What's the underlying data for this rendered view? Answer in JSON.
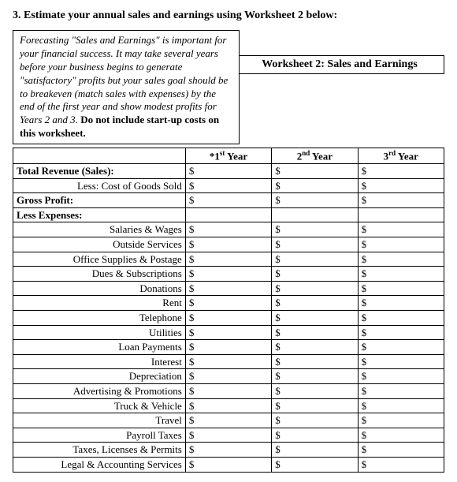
{
  "heading": "3. Estimate your annual sales and earnings using Worksheet 2 below:",
  "callout": {
    "italic_part": "Forecasting \"Sales and Earnings\" is important for your financial success.  It may take several years before your business begins to generate \"satisfactory\" profits but your sales goal should be to breakeven (match sales with expenses) by the end of the first year and show modest profits for Years 2 and 3.",
    "bold_part": " Do not include start-up costs on this worksheet."
  },
  "worksheet_title": "Worksheet 2:  Sales and Earnings",
  "columns": {
    "label": "",
    "y1_prefix": "*1",
    "y1_sup": "st",
    "y1_suffix": " Year",
    "y2_prefix": "2",
    "y2_sup": "nd",
    "y2_suffix": " Year",
    "y3_prefix": "3",
    "y3_sup": "rd",
    "y3_suffix": " Year"
  },
  "currency": "$",
  "rows": [
    {
      "label": "Total Revenue (Sales):",
      "bold": true,
      "align": "left",
      "money": true
    },
    {
      "label": "Less: Cost of Goods Sold",
      "bold": false,
      "align": "right",
      "money": true
    },
    {
      "label": "Gross Profit:",
      "bold": true,
      "align": "left",
      "money": true
    },
    {
      "label": "Less Expenses:",
      "bold": true,
      "align": "left",
      "money": false
    },
    {
      "label": "Salaries & Wages",
      "bold": false,
      "align": "right",
      "money": true
    },
    {
      "label": "Outside Services",
      "bold": false,
      "align": "right",
      "money": true
    },
    {
      "label": "Office Supplies & Postage",
      "bold": false,
      "align": "right",
      "money": true
    },
    {
      "label": "Dues & Subscriptions",
      "bold": false,
      "align": "right",
      "money": true
    },
    {
      "label": "Donations",
      "bold": false,
      "align": "right",
      "money": true
    },
    {
      "label": "Rent",
      "bold": false,
      "align": "right",
      "money": true
    },
    {
      "label": "Telephone",
      "bold": false,
      "align": "right",
      "money": true
    },
    {
      "label": "Utilities",
      "bold": false,
      "align": "right",
      "money": true
    },
    {
      "label": "Loan Payments",
      "bold": false,
      "align": "right",
      "money": true
    },
    {
      "label": "Interest",
      "bold": false,
      "align": "right",
      "money": true
    },
    {
      "label": "Depreciation",
      "bold": false,
      "align": "right",
      "money": true
    },
    {
      "label": "Advertising & Promotions",
      "bold": false,
      "align": "right",
      "money": true
    },
    {
      "label": "Truck & Vehicle",
      "bold": false,
      "align": "right",
      "money": true
    },
    {
      "label": "Travel",
      "bold": false,
      "align": "right",
      "money": true
    },
    {
      "label": "Payroll Taxes",
      "bold": false,
      "align": "right",
      "money": true
    },
    {
      "label": "Taxes, Licenses & Permits",
      "bold": false,
      "align": "right",
      "money": true
    },
    {
      "label": "Legal & Accounting Services",
      "bold": false,
      "align": "right",
      "money": true
    }
  ],
  "style": {
    "font_family": "Times New Roman",
    "heading_fontsize": 14,
    "body_fontsize": 13,
    "border_color": "#000000",
    "background": "#ffffff",
    "text_color": "#000000"
  }
}
